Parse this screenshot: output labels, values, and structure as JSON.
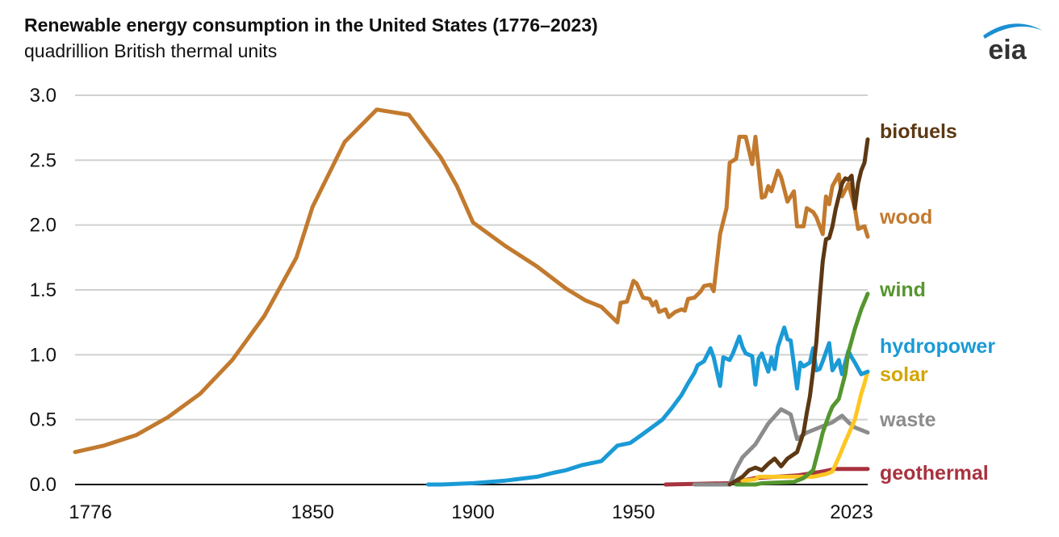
{
  "header": {
    "title": "Renewable energy consumption in the United States (1776–2023)",
    "subtitle": "quadrillion British thermal units",
    "logo_text": "eia"
  },
  "chart_data": {
    "type": "line",
    "title": "Renewable energy consumption in the United States (1776–2023)",
    "ylabel": "quadrillion British thermal units",
    "xlabel": "",
    "xlim": [
      1776,
      2023
    ],
    "ylim": [
      0,
      3.0
    ],
    "x_ticks": [
      "1776",
      "1850",
      "1900",
      "1950",
      "2023"
    ],
    "x_tick_values": [
      1776,
      1850,
      1900,
      1950,
      2023
    ],
    "y_ticks": [
      "0.0",
      "0.5",
      "1.0",
      "1.5",
      "2.0",
      "2.5",
      "3.0"
    ],
    "y_tick_values": [
      0,
      0.5,
      1.0,
      1.5,
      2.0,
      2.5,
      3.0
    ],
    "grid": true,
    "legend": "direct labels at right end of lines",
    "series": [
      {
        "name": "wood",
        "color": "#c27a2e",
        "label_color": "#c27a2e",
        "points": [
          [
            1776,
            0.25
          ],
          [
            1785,
            0.3
          ],
          [
            1795,
            0.38
          ],
          [
            1805,
            0.52
          ],
          [
            1815,
            0.7
          ],
          [
            1825,
            0.96
          ],
          [
            1835,
            1.3
          ],
          [
            1845,
            1.75
          ],
          [
            1850,
            2.14
          ],
          [
            1860,
            2.64
          ],
          [
            1870,
            2.89
          ],
          [
            1880,
            2.85
          ],
          [
            1890,
            2.52
          ],
          [
            1895,
            2.3
          ],
          [
            1900,
            2.02
          ],
          [
            1910,
            1.84
          ],
          [
            1920,
            1.68
          ],
          [
            1929,
            1.51
          ],
          [
            1935,
            1.42
          ],
          [
            1940,
            1.37
          ],
          [
            1945,
            1.25
          ],
          [
            1946,
            1.4
          ],
          [
            1948,
            1.41
          ],
          [
            1950,
            1.57
          ],
          [
            1951,
            1.55
          ],
          [
            1953,
            1.44
          ],
          [
            1955,
            1.43
          ],
          [
            1956,
            1.38
          ],
          [
            1957,
            1.41
          ],
          [
            1958,
            1.33
          ],
          [
            1960,
            1.35
          ],
          [
            1961,
            1.29
          ],
          [
            1963,
            1.33
          ],
          [
            1965,
            1.35
          ],
          [
            1966,
            1.34
          ],
          [
            1967,
            1.43
          ],
          [
            1969,
            1.44
          ],
          [
            1971,
            1.49
          ],
          [
            1972,
            1.53
          ],
          [
            1974,
            1.54
          ],
          [
            1975,
            1.49
          ],
          [
            1977,
            1.93
          ],
          [
            1979,
            2.13
          ],
          [
            1980,
            2.48
          ],
          [
            1982,
            2.51
          ],
          [
            1983,
            2.68
          ],
          [
            1985,
            2.68
          ],
          [
            1987,
            2.47
          ],
          [
            1988,
            2.68
          ],
          [
            1990,
            2.21
          ],
          [
            1991,
            2.22
          ],
          [
            1992,
            2.3
          ],
          [
            1993,
            2.26
          ],
          [
            1995,
            2.42
          ],
          [
            1996,
            2.37
          ],
          [
            1998,
            2.18
          ],
          [
            2000,
            2.26
          ],
          [
            2001,
            1.99
          ],
          [
            2003,
            1.99
          ],
          [
            2004,
            2.13
          ],
          [
            2006,
            2.1
          ],
          [
            2007,
            2.06
          ],
          [
            2009,
            1.93
          ],
          [
            2010,
            2.22
          ],
          [
            2011,
            2.16
          ],
          [
            2012,
            2.3
          ],
          [
            2014,
            2.39
          ],
          [
            2015,
            2.22
          ],
          [
            2017,
            2.32
          ],
          [
            2019,
            2.13
          ],
          [
            2020,
            1.97
          ],
          [
            2022,
            1.99
          ],
          [
            2023,
            1.91
          ]
        ]
      },
      {
        "name": "biofuels",
        "color": "#5c3813",
        "label_color": "#5c3813",
        "points": [
          [
            1980,
            0.0
          ],
          [
            1984,
            0.06
          ],
          [
            1986,
            0.11
          ],
          [
            1988,
            0.13
          ],
          [
            1990,
            0.11
          ],
          [
            1992,
            0.16
          ],
          [
            1994,
            0.2
          ],
          [
            1996,
            0.14
          ],
          [
            1998,
            0.2
          ],
          [
            2001,
            0.25
          ],
          [
            2003,
            0.4
          ],
          [
            2004,
            0.55
          ],
          [
            2005,
            0.68
          ],
          [
            2006,
            0.88
          ],
          [
            2007,
            1.1
          ],
          [
            2008,
            1.43
          ],
          [
            2009,
            1.72
          ],
          [
            2010,
            1.89
          ],
          [
            2011,
            1.9
          ],
          [
            2012,
            1.99
          ],
          [
            2013,
            2.12
          ],
          [
            2014,
            2.22
          ],
          [
            2015,
            2.32
          ],
          [
            2016,
            2.36
          ],
          [
            2017,
            2.35
          ],
          [
            2018,
            2.38
          ],
          [
            2019,
            2.13
          ],
          [
            2020,
            2.32
          ],
          [
            2021,
            2.42
          ],
          [
            2022,
            2.48
          ],
          [
            2023,
            2.66
          ]
        ]
      },
      {
        "name": "wind",
        "color": "#55962f",
        "label_color": "#55962f",
        "points": [
          [
            1982,
            0.0
          ],
          [
            1988,
            0.0
          ],
          [
            1990,
            0.01
          ],
          [
            2000,
            0.02
          ],
          [
            2003,
            0.05
          ],
          [
            2006,
            0.11
          ],
          [
            2008,
            0.3
          ],
          [
            2009,
            0.4
          ],
          [
            2011,
            0.54
          ],
          [
            2012,
            0.6
          ],
          [
            2014,
            0.66
          ],
          [
            2016,
            0.85
          ],
          [
            2017,
            1.02
          ],
          [
            2019,
            1.2
          ],
          [
            2021,
            1.35
          ],
          [
            2023,
            1.47
          ]
        ]
      },
      {
        "name": "hydropower",
        "color": "#1a9ad6",
        "label_color": "#1a9ad6",
        "points": [
          [
            1886,
            0.0
          ],
          [
            1890,
            0.0
          ],
          [
            1900,
            0.01
          ],
          [
            1910,
            0.03
          ],
          [
            1920,
            0.06
          ],
          [
            1925,
            0.09
          ],
          [
            1929,
            0.11
          ],
          [
            1934,
            0.15
          ],
          [
            1940,
            0.18
          ],
          [
            1945,
            0.3
          ],
          [
            1949,
            0.32
          ],
          [
            1953,
            0.39
          ],
          [
            1959,
            0.5
          ],
          [
            1962,
            0.59
          ],
          [
            1965,
            0.69
          ],
          [
            1967,
            0.78
          ],
          [
            1969,
            0.86
          ],
          [
            1970,
            0.92
          ],
          [
            1972,
            0.95
          ],
          [
            1974,
            1.05
          ],
          [
            1975,
            0.98
          ],
          [
            1977,
            0.76
          ],
          [
            1978,
            0.98
          ],
          [
            1980,
            0.96
          ],
          [
            1981,
            1.01
          ],
          [
            1983,
            1.14
          ],
          [
            1984,
            1.06
          ],
          [
            1985,
            1.01
          ],
          [
            1987,
            0.99
          ],
          [
            1988,
            0.77
          ],
          [
            1989,
            0.97
          ],
          [
            1990,
            1.01
          ],
          [
            1992,
            0.87
          ],
          [
            1993,
            0.98
          ],
          [
            1994,
            0.89
          ],
          [
            1995,
            1.06
          ],
          [
            1997,
            1.21
          ],
          [
            1998,
            1.12
          ],
          [
            1999,
            1.11
          ],
          [
            2001,
            0.74
          ],
          [
            2002,
            0.94
          ],
          [
            2003,
            0.91
          ],
          [
            2005,
            0.94
          ],
          [
            2006,
            1.05
          ],
          [
            2007,
            0.88
          ],
          [
            2008,
            0.89
          ],
          [
            2009,
            0.95
          ],
          [
            2011,
            1.09
          ],
          [
            2012,
            0.88
          ],
          [
            2014,
            0.96
          ],
          [
            2015,
            0.85
          ],
          [
            2017,
            1.03
          ],
          [
            2018,
            0.98
          ],
          [
            2019,
            0.94
          ],
          [
            2021,
            0.85
          ],
          [
            2023,
            0.87
          ]
        ]
      },
      {
        "name": "solar",
        "color": "#fdc722",
        "label_color": "#d4a500",
        "points": [
          [
            1984,
            0.03
          ],
          [
            1988,
            0.04
          ],
          [
            1989,
            0.06
          ],
          [
            2001,
            0.06
          ],
          [
            2006,
            0.06
          ],
          [
            2010,
            0.08
          ],
          [
            2012,
            0.1
          ],
          [
            2014,
            0.21
          ],
          [
            2016,
            0.33
          ],
          [
            2019,
            0.5
          ],
          [
            2020,
            0.6
          ],
          [
            2021,
            0.7
          ],
          [
            2022,
            0.78
          ],
          [
            2023,
            0.87
          ]
        ]
      },
      {
        "name": "waste",
        "color": "#8c8c8c",
        "label_color": "#8c8c8c",
        "points": [
          [
            1969,
            0.0
          ],
          [
            1980,
            0.0
          ],
          [
            1982,
            0.12
          ],
          [
            1984,
            0.21
          ],
          [
            1988,
            0.31
          ],
          [
            1992,
            0.47
          ],
          [
            1996,
            0.58
          ],
          [
            1999,
            0.54
          ],
          [
            2001,
            0.35
          ],
          [
            2004,
            0.4
          ],
          [
            2007,
            0.43
          ],
          [
            2012,
            0.48
          ],
          [
            2015,
            0.53
          ],
          [
            2017,
            0.48
          ],
          [
            2019,
            0.44
          ],
          [
            2023,
            0.4
          ]
        ]
      },
      {
        "name": "geothermal",
        "color": "#a8323e",
        "label_color": "#a8323e",
        "points": [
          [
            1960,
            0.0
          ],
          [
            1980,
            0.01
          ],
          [
            1988,
            0.05
          ],
          [
            2001,
            0.07
          ],
          [
            2009,
            0.1
          ],
          [
            2013,
            0.12
          ],
          [
            2023,
            0.12
          ]
        ]
      }
    ]
  }
}
